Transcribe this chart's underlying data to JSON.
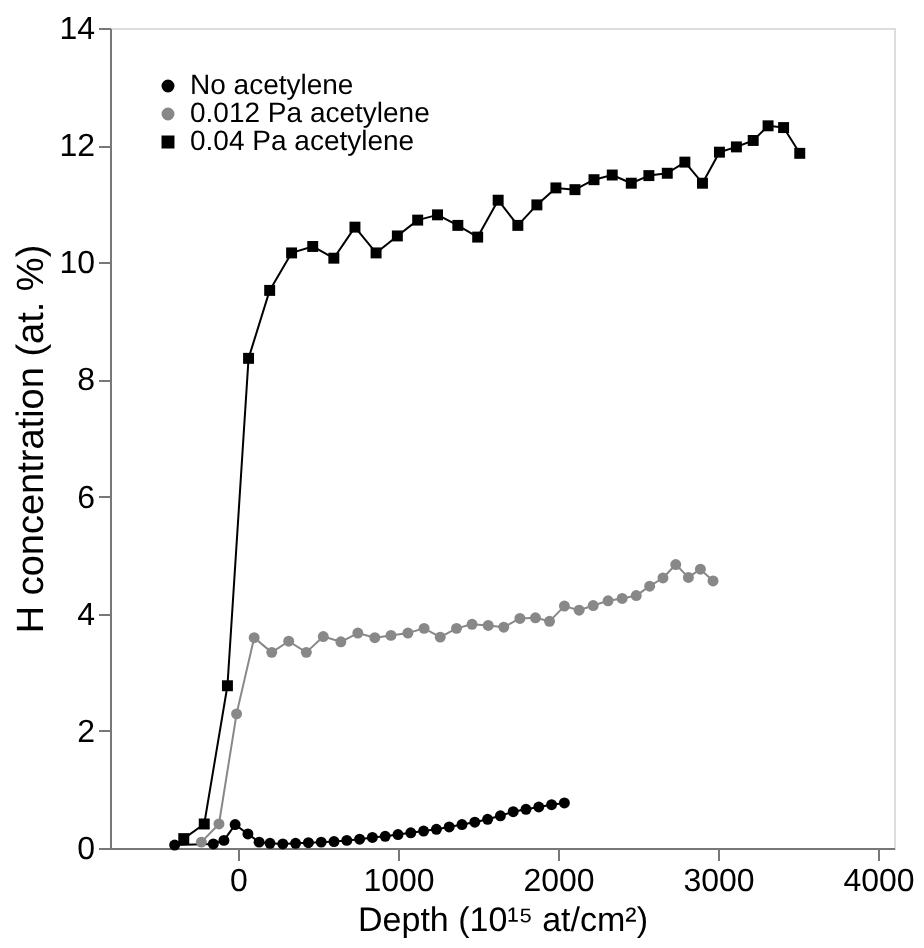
{
  "chart_data": {
    "type": "line",
    "xlabel": "Depth (10¹⁵ at/cm²)",
    "ylabel": "H concentration (at. %)",
    "xlim": [
      -800,
      4100
    ],
    "xticks": [
      0,
      1000,
      2000,
      3000,
      4000
    ],
    "ylim": [
      0,
      14
    ],
    "yticks": [
      0,
      2,
      4,
      6,
      8,
      10,
      12,
      14
    ],
    "grid": false,
    "legend": "top left",
    "line_style": "solid",
    "series": [
      {
        "name": "No acetylene",
        "color": "#000000",
        "marker": "circle",
        "x": [
          -396,
          -154,
          -88,
          -18,
          62,
          132,
          200,
          280,
          360,
          440,
          520,
          600,
          680,
          760,
          840,
          920,
          1000,
          1080,
          1160,
          1240,
          1320,
          1400,
          1480,
          1560,
          1640,
          1720,
          1800,
          1880,
          1960,
          2040
        ],
        "values": [
          0.05,
          0.07,
          0.13,
          0.4,
          0.24,
          0.1,
          0.08,
          0.07,
          0.08,
          0.09,
          0.1,
          0.11,
          0.13,
          0.15,
          0.18,
          0.2,
          0.23,
          0.26,
          0.29,
          0.32,
          0.36,
          0.4,
          0.44,
          0.49,
          0.55,
          0.62,
          0.66,
          0.7,
          0.74,
          0.77
        ]
      },
      {
        "name": "0.012 Pa acetylene",
        "color": "#888888",
        "marker": "circle",
        "x": [
          -229,
          -119,
          -9,
          101,
          211,
          317,
          427,
          533,
          643,
          749,
          855,
          956,
          1062,
          1163,
          1264,
          1366,
          1463,
          1564,
          1661,
          1762,
          1859,
          1947,
          2040,
          2132,
          2220,
          2313,
          2401,
          2489,
          2573,
          2656,
          2736,
          2815,
          2890,
          2969
        ],
        "values": [
          0.1,
          0.41,
          2.29,
          3.59,
          3.34,
          3.53,
          3.34,
          3.61,
          3.52,
          3.67,
          3.59,
          3.63,
          3.67,
          3.75,
          3.6,
          3.75,
          3.82,
          3.8,
          3.77,
          3.92,
          3.93,
          3.87,
          4.13,
          4.06,
          4.14,
          4.22,
          4.26,
          4.31,
          4.47,
          4.61,
          4.84,
          4.62,
          4.76,
          4.56
        ]
      },
      {
        "name": "0.04 Pa acetylene",
        "color": "#000000",
        "marker": "square",
        "x": [
          -339,
          -211,
          -66,
          66,
          198,
          335,
          467,
          599,
          731,
          863,
          996,
          1123,
          1247,
          1374,
          1498,
          1626,
          1749,
          1868,
          1987,
          2106,
          2225,
          2339,
          2458,
          2568,
          2683,
          2793,
          2903,
          3009,
          3115,
          3220,
          3313,
          3410,
          3511
        ],
        "values": [
          0.16,
          0.41,
          2.77,
          8.36,
          9.52,
          10.16,
          10.27,
          10.07,
          10.6,
          10.16,
          10.45,
          10.72,
          10.81,
          10.63,
          10.43,
          11.06,
          10.63,
          10.98,
          11.27,
          11.24,
          11.41,
          11.49,
          11.35,
          11.48,
          11.52,
          11.71,
          11.35,
          11.88,
          11.97,
          12.08,
          12.33,
          12.3,
          11.86
        ]
      }
    ]
  }
}
